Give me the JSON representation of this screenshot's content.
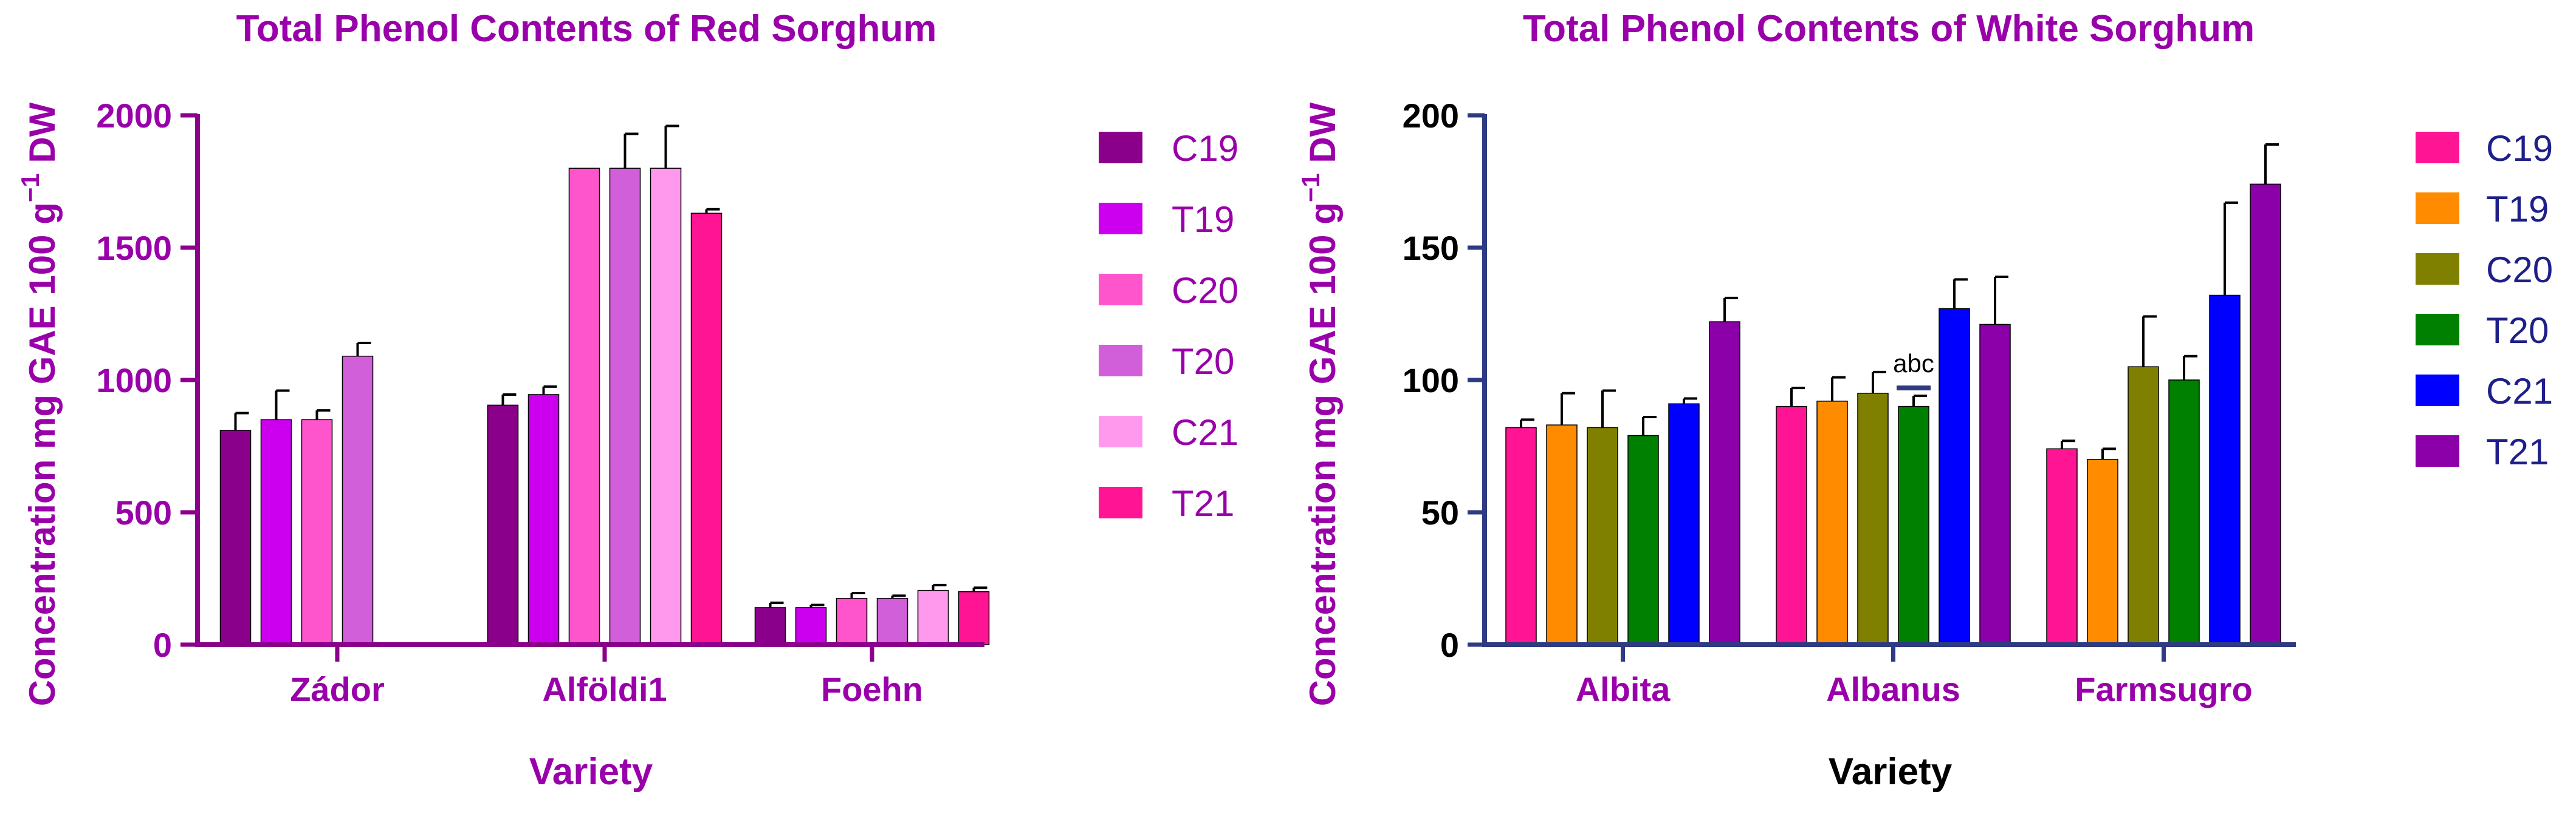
{
  "chart_data": [
    {
      "type": "bar",
      "title": "Total Phenol Contents of Red Sorghum",
      "ylabel": "Concentration mg GAE 100 g",
      "ylabel_sup": "−1",
      "ylabel_suffix": " DW",
      "xlabel": "Variety",
      "ylim": [
        0,
        2000
      ],
      "yticks": [
        0,
        500,
        1000,
        1500,
        2000
      ],
      "categories": [
        "Zádor",
        "Alföldi1",
        "Foehn"
      ],
      "series": [
        {
          "name": "C19",
          "color": "#8B008B",
          "values": [
            810,
            905,
            140
          ],
          "errors": [
            65,
            40,
            18
          ]
        },
        {
          "name": "T19",
          "color": "#CC00EE",
          "values": [
            850,
            945,
            140
          ],
          "errors": [
            110,
            30,
            10
          ]
        },
        {
          "name": "C20",
          "color": "#FF55CC",
          "values": [
            850,
            1800,
            175
          ],
          "errors": [
            35,
            0,
            20
          ]
        },
        {
          "name": "T20",
          "color": "#D15FD9",
          "values": [
            1090,
            1800,
            175
          ],
          "errors": [
            50,
            130,
            10
          ]
        },
        {
          "name": "C21",
          "color": "#FF99EE",
          "values": [
            null,
            1800,
            205
          ],
          "errors": [
            null,
            160,
            20
          ]
        },
        {
          "name": "T21",
          "color": "#FF1493",
          "values": [
            null,
            1630,
            200
          ],
          "errors": [
            null,
            15,
            15
          ]
        }
      ],
      "colors": {
        "text": "#9900AA",
        "axis": "#8B008B"
      }
    },
    {
      "type": "bar",
      "title": "Total Phenol Contents of White Sorghum",
      "ylabel": "Concentration mg GAE 100 g",
      "ylabel_sup": "−1",
      "ylabel_suffix": " DW",
      "xlabel": "Variety",
      "ylim": [
        0,
        200
      ],
      "yticks": [
        0,
        50,
        100,
        150,
        200
      ],
      "categories": [
        "Albita",
        "Albanus",
        "Farmsugro"
      ],
      "series": [
        {
          "name": "C19",
          "color": "#FF1493",
          "values": [
            82,
            90,
            74
          ],
          "errors": [
            3,
            7,
            3
          ]
        },
        {
          "name": "T19",
          "color": "#FF8C00",
          "values": [
            83,
            92,
            70
          ],
          "errors": [
            12,
            9,
            4
          ]
        },
        {
          "name": "C20",
          "color": "#808000",
          "values": [
            82,
            95,
            105
          ],
          "errors": [
            14,
            8,
            19
          ]
        },
        {
          "name": "T20",
          "color": "#008000",
          "values": [
            79,
            90,
            100
          ],
          "errors": [
            7,
            4,
            9
          ]
        },
        {
          "name": "C21",
          "color": "#0000FF",
          "values": [
            91,
            127,
            132
          ],
          "errors": [
            2,
            11,
            35
          ]
        },
        {
          "name": "T21",
          "color": "#8B00A8",
          "values": [
            122,
            121,
            174
          ],
          "errors": [
            9,
            18,
            15
          ]
        }
      ],
      "annotation": {
        "text": "abc",
        "category": "Albanus",
        "series": "T20",
        "level": 97
      },
      "colors": {
        "text": "#9900AA",
        "axis": "#2E3B82",
        "xlabel": "#000000",
        "ticklabel": "#000000",
        "legendtext": "#1F1F8A"
      }
    }
  ]
}
